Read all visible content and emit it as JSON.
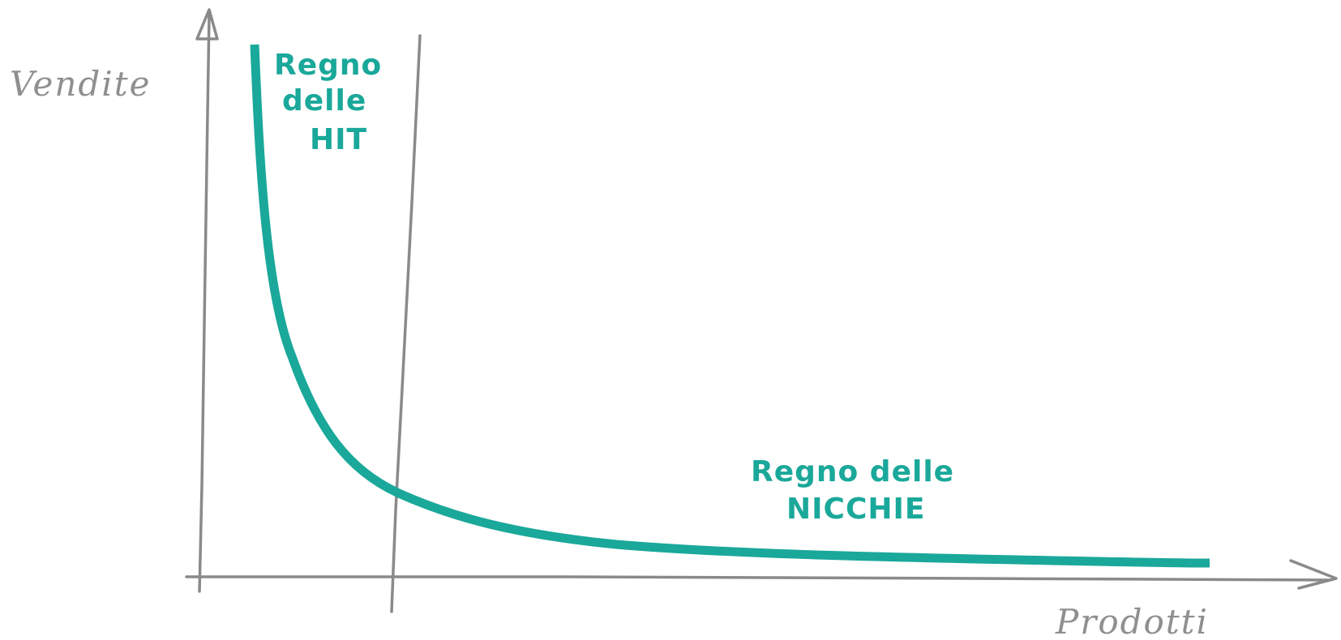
{
  "axes": {
    "y_label": "Vendite",
    "x_label": "Prodotti"
  },
  "regions": {
    "hit": {
      "lines": [
        "Regno",
        "delle",
        "HIT"
      ]
    },
    "niche": {
      "lines": [
        "Regno delle",
        "NICCHIE"
      ]
    }
  },
  "colors": {
    "curve": "#1aa89a",
    "axes": "#8a8a8a",
    "axis_text": "#8f8f8f"
  },
  "curve": {
    "shape": "long-tail"
  }
}
